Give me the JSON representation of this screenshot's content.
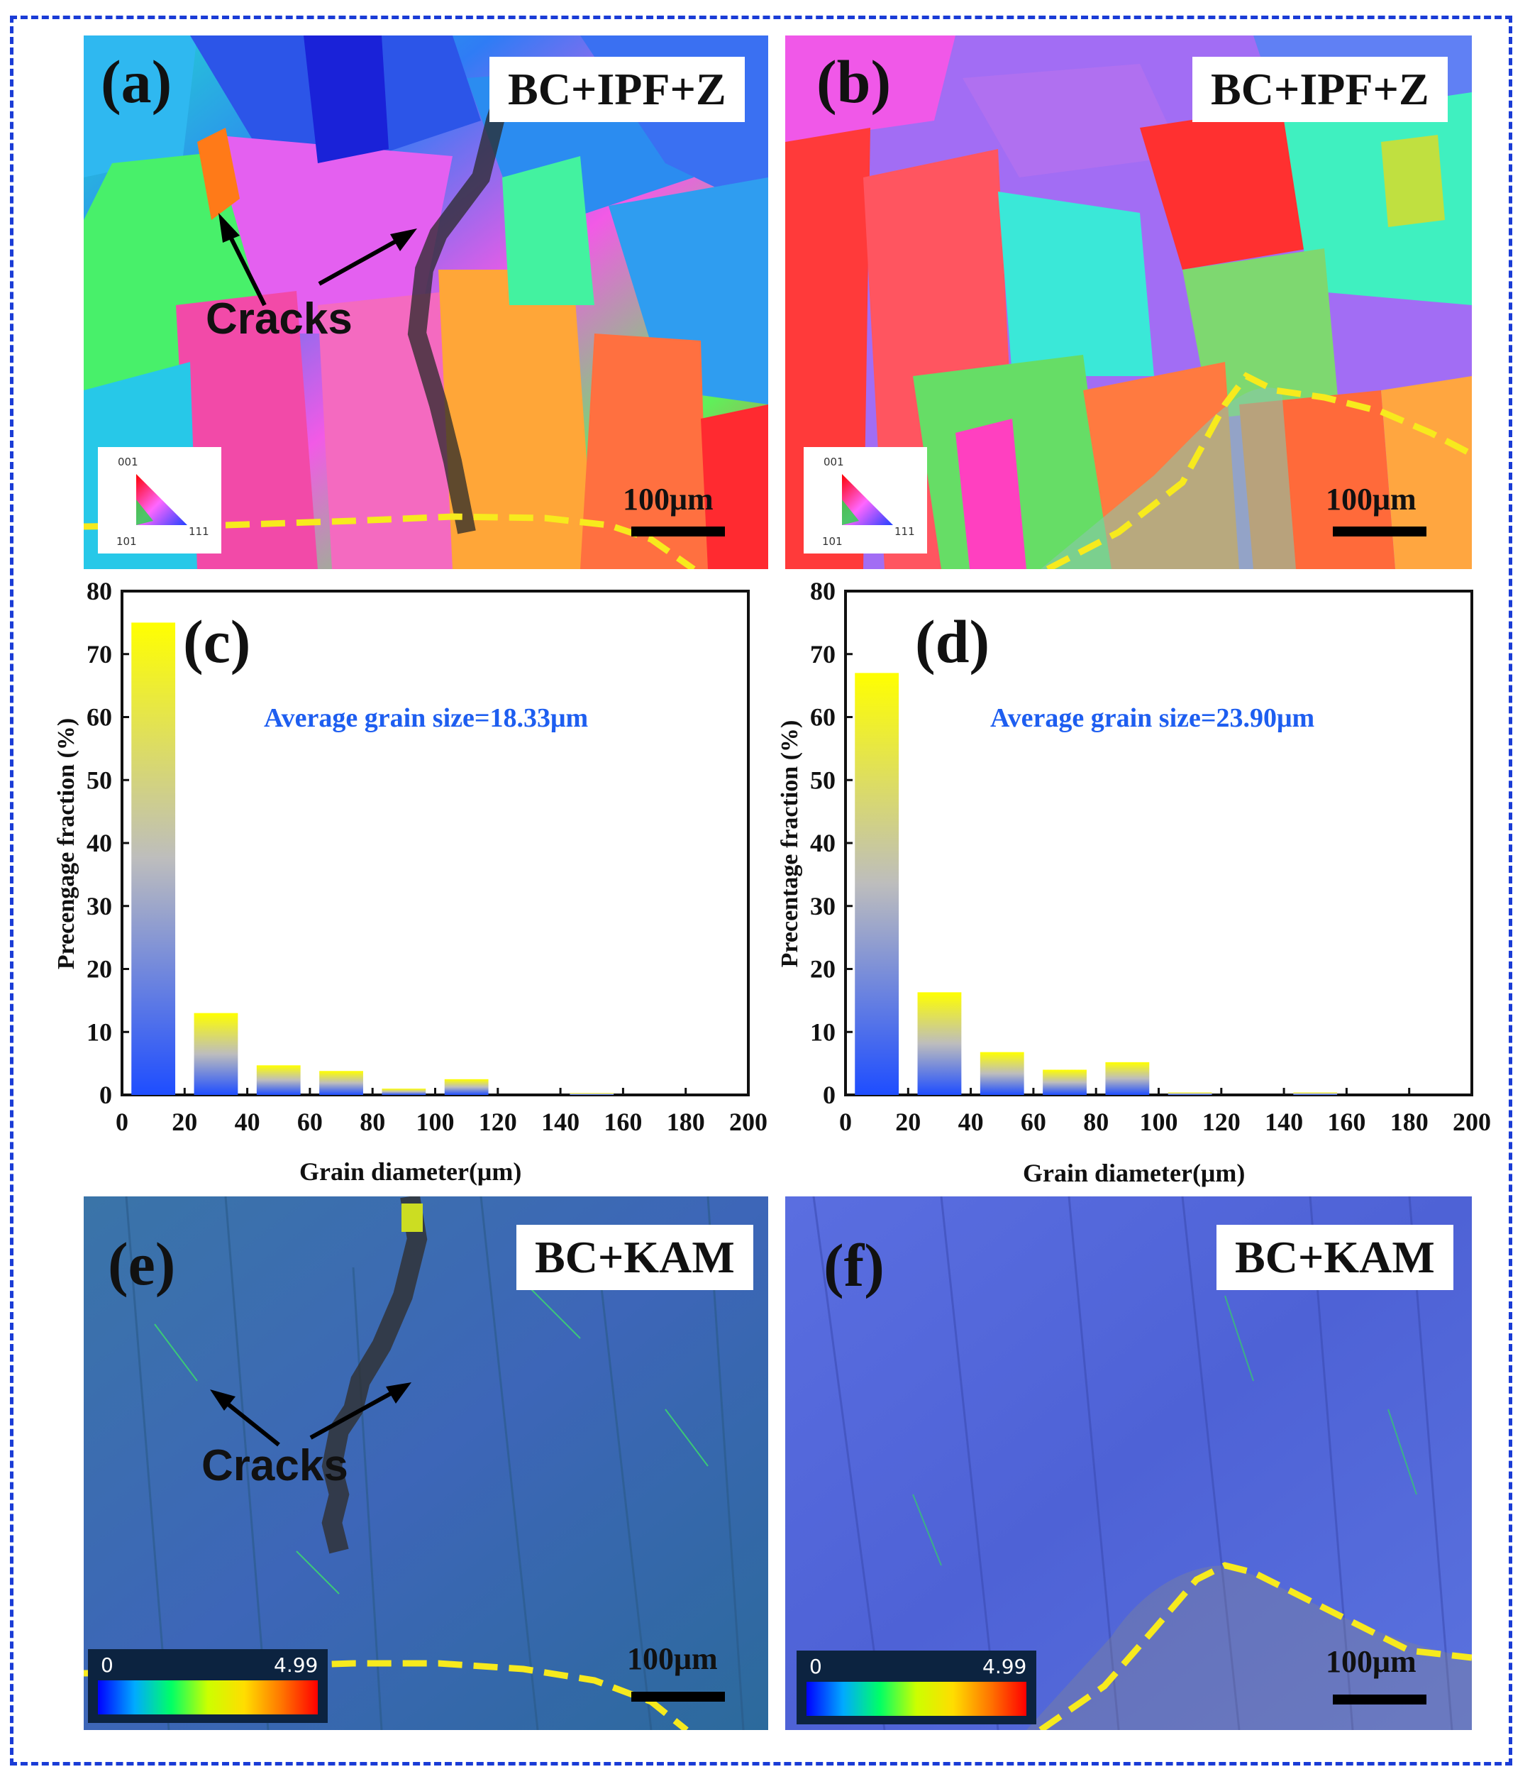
{
  "panels": {
    "a": {
      "tag": "(a)",
      "mode": "BC+IPF+Z",
      "scale": "100μm",
      "annotation": "Cracks",
      "ipf_key": {
        "top": "001",
        "bottom_left": "101",
        "bottom_right": "111"
      }
    },
    "b": {
      "tag": "(b)",
      "mode": "BC+IPF+Z",
      "scale": "100μm",
      "ipf_key": {
        "top": "001",
        "bottom_left": "101",
        "bottom_right": "111"
      }
    },
    "e": {
      "tag": "(e)",
      "mode": "BC+KAM",
      "scale": "100μm",
      "annotation": "Cracks",
      "kam_key": {
        "min": "0",
        "max": "4.99"
      }
    },
    "f": {
      "tag": "(f)",
      "mode": "BC+KAM",
      "scale": "100μm",
      "kam_key": {
        "min": "0",
        "max": "4.99"
      }
    }
  },
  "colors": {
    "frame": "#1a3cd6",
    "boundary": "#ffee00",
    "bar_top": "#ffff00",
    "bar_mid": "#bdbdbd",
    "bar_bottom": "#1e4dff",
    "annotation_text": "#1e5ef0"
  },
  "chart_data": [
    {
      "type": "bar",
      "panel": "(c)",
      "annotation": "Average grain size=18.33μm",
      "xlabel": "Grain diameter(μm)",
      "ylabel": "Precengage fraction (%)",
      "xlim": [
        0,
        200
      ],
      "ylim": [
        0,
        80
      ],
      "xticks": [
        0,
        20,
        40,
        60,
        80,
        100,
        120,
        140,
        160,
        180,
        200
      ],
      "yticks": [
        0,
        10,
        20,
        30,
        40,
        50,
        60,
        70,
        80
      ],
      "x": [
        10,
        30,
        50,
        70,
        90,
        110,
        130,
        150,
        170,
        190
      ],
      "values": [
        75,
        13,
        4.7,
        3.8,
        1.0,
        2.5,
        0,
        0.3,
        0,
        0
      ]
    },
    {
      "type": "bar",
      "panel": "(d)",
      "annotation": "Average grain size=23.90μm",
      "xlabel": "Grain diameter(μm)",
      "ylabel": "Precentage fraction (%)",
      "xlim": [
        0,
        200
      ],
      "ylim": [
        0,
        80
      ],
      "xticks": [
        0,
        20,
        40,
        60,
        80,
        100,
        120,
        140,
        160,
        180,
        200
      ],
      "yticks": [
        0,
        10,
        20,
        30,
        40,
        50,
        60,
        70,
        80
      ],
      "x": [
        10,
        30,
        50,
        70,
        90,
        110,
        130,
        150,
        170,
        190
      ],
      "values": [
        67,
        16.3,
        6.8,
        4.0,
        5.2,
        0.4,
        0,
        0.4,
        0,
        0
      ]
    }
  ]
}
